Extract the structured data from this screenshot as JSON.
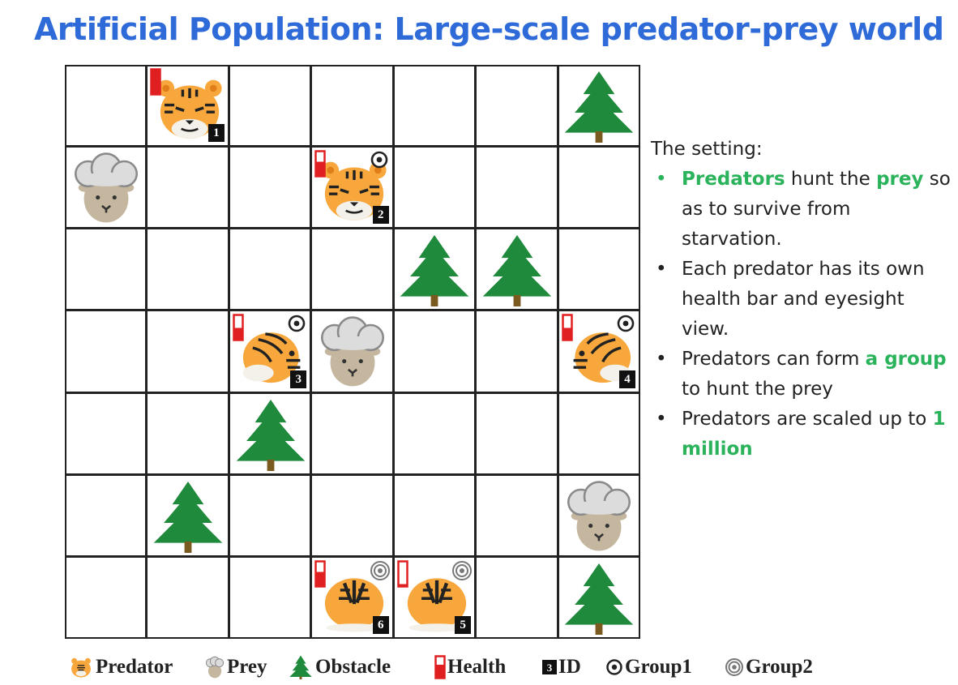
{
  "title": "Artificial Population: Large-scale predator-prey world",
  "grid": {
    "rows": 7,
    "cols": 7,
    "tokens": [
      {
        "type": "predator",
        "row": 0,
        "col": 1,
        "id": "1",
        "health": 1.0,
        "group": null
      },
      {
        "type": "tree",
        "row": 0,
        "col": 6
      },
      {
        "type": "prey",
        "row": 1,
        "col": 0
      },
      {
        "type": "predator",
        "row": 1,
        "col": 3,
        "id": "2",
        "health": 0.6,
        "group": "group1"
      },
      {
        "type": "tree",
        "row": 2,
        "col": 4
      },
      {
        "type": "tree",
        "row": 2,
        "col": 5
      },
      {
        "type": "predator",
        "row": 3,
        "col": 2,
        "id": "3",
        "health": 0.5,
        "group": "group1",
        "facing": "right"
      },
      {
        "type": "prey",
        "row": 3,
        "col": 3
      },
      {
        "type": "predator",
        "row": 3,
        "col": 6,
        "id": "4",
        "health": 0.5,
        "group": "group1",
        "facing": "left"
      },
      {
        "type": "tree",
        "row": 4,
        "col": 2
      },
      {
        "type": "tree",
        "row": 5,
        "col": 1
      },
      {
        "type": "prey",
        "row": 5,
        "col": 6
      },
      {
        "type": "predator",
        "row": 6,
        "col": 3,
        "id": "6",
        "health": 0.6,
        "group": "group2",
        "facing": "down"
      },
      {
        "type": "predator",
        "row": 6,
        "col": 4,
        "id": "5",
        "health": 0.1,
        "group": "group2",
        "facing": "down"
      },
      {
        "type": "tree",
        "row": 6,
        "col": 6
      }
    ]
  },
  "setting": {
    "heading": "The setting:",
    "bullets": [
      {
        "parts": [
          {
            "t": "Predators",
            "hl": true
          },
          {
            "t": " hunt the ",
            "hl": false
          },
          {
            "t": "prey",
            "hl": true
          },
          {
            "t": " so as to survive from starvation.",
            "hl": false
          }
        ],
        "dot_color": "#2bb35c"
      },
      {
        "parts": [
          {
            "t": "Each predator has its own health bar and eyesight view.",
            "hl": false
          }
        ],
        "dot_color": "#222222"
      },
      {
        "parts": [
          {
            "t": " Predators can form ",
            "hl": false
          },
          {
            "t": "a group",
            "hl": true
          },
          {
            "t": " to hunt the prey",
            "hl": false
          }
        ],
        "dot_color": "#222222"
      },
      {
        "parts": [
          {
            "t": " Predators are scaled up to ",
            "hl": false
          },
          {
            "t": "1 million",
            "hl": true
          }
        ],
        "dot_color": "#222222"
      }
    ]
  },
  "legend": {
    "predator": "Predator",
    "prey": "Prey",
    "obstacle": "Obstacle",
    "health": "Health",
    "id": "ID",
    "group1": "Group1",
    "group2": "Group2"
  },
  "colors": {
    "title": "#2f6bd8",
    "highlight": "#2bb35c",
    "tiger": "#f7a73b",
    "tree": "#1f8a3c",
    "trunk": "#7a5a1e",
    "health": "#e02020"
  }
}
